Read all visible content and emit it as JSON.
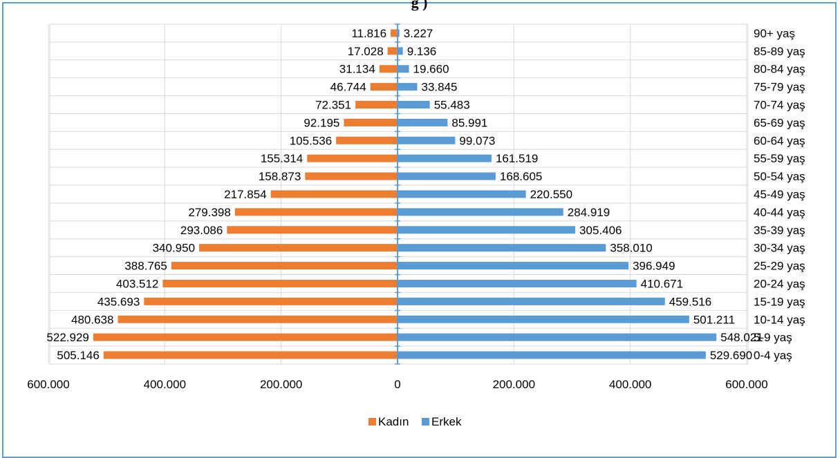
{
  "title_fragment": "g                          )",
  "chart_data": {
    "type": "bar",
    "orientation": "horizontal",
    "variant": "population-pyramid",
    "categories": [
      "0-4 yaş",
      "5-9 yaş",
      "10-14 yaş",
      "15-19 yaş",
      "20-24 yaş",
      "25-29 yaş",
      "30-34 yaş",
      "35-39 yaş",
      "40-44 yaş",
      "45-49 yaş",
      "50-54 yaş",
      "55-59 yaş",
      "60-64 yaş",
      "65-69 yaş",
      "70-74 yaş",
      "75-79 yaş",
      "80-84 yaş",
      "85-89 yaş",
      "90+ yaş"
    ],
    "series": [
      {
        "name": "Kadın",
        "color": "#ed7d31",
        "side": "left",
        "values": [
          505146,
          522929,
          480638,
          435693,
          403512,
          388765,
          340950,
          293086,
          279398,
          217854,
          158873,
          155314,
          105536,
          92195,
          72351,
          46744,
          31134,
          17028,
          11816
        ],
        "labels": [
          "505.146",
          "522.929",
          "480.638",
          "435.693",
          "403.512",
          "388.765",
          "340.950",
          "293.086",
          "279.398",
          "217.854",
          "158.873",
          "155.314",
          "105.536",
          "92.195",
          "72.351",
          "46.744",
          "31.134",
          "17.028",
          "11.816"
        ]
      },
      {
        "name": "Erkek",
        "color": "#5b9bd5",
        "side": "right",
        "values": [
          529690,
          548021,
          501211,
          459516,
          410671,
          396949,
          358010,
          305406,
          284919,
          220550,
          168605,
          161519,
          99073,
          85991,
          55483,
          33845,
          19660,
          9136,
          3227
        ],
        "labels": [
          "529.690",
          "548.021",
          "501.211",
          "459.516",
          "410.671",
          "396.949",
          "358.010",
          "305.406",
          "284.919",
          "220.550",
          "168.605",
          "161.519",
          "99.073",
          "85.991",
          "55.483",
          "33.845",
          "19.660",
          "9.136",
          "3.227"
        ]
      }
    ],
    "xlim": [
      -600000,
      600000
    ],
    "xticks": [
      -600000,
      -400000,
      -200000,
      0,
      200000,
      400000,
      600000
    ],
    "xtick_labels": [
      "600.000",
      "400.000",
      "200.000",
      "0",
      "200.000",
      "400.000",
      "600.000"
    ],
    "grid": true,
    "legend_position": "bottom"
  }
}
